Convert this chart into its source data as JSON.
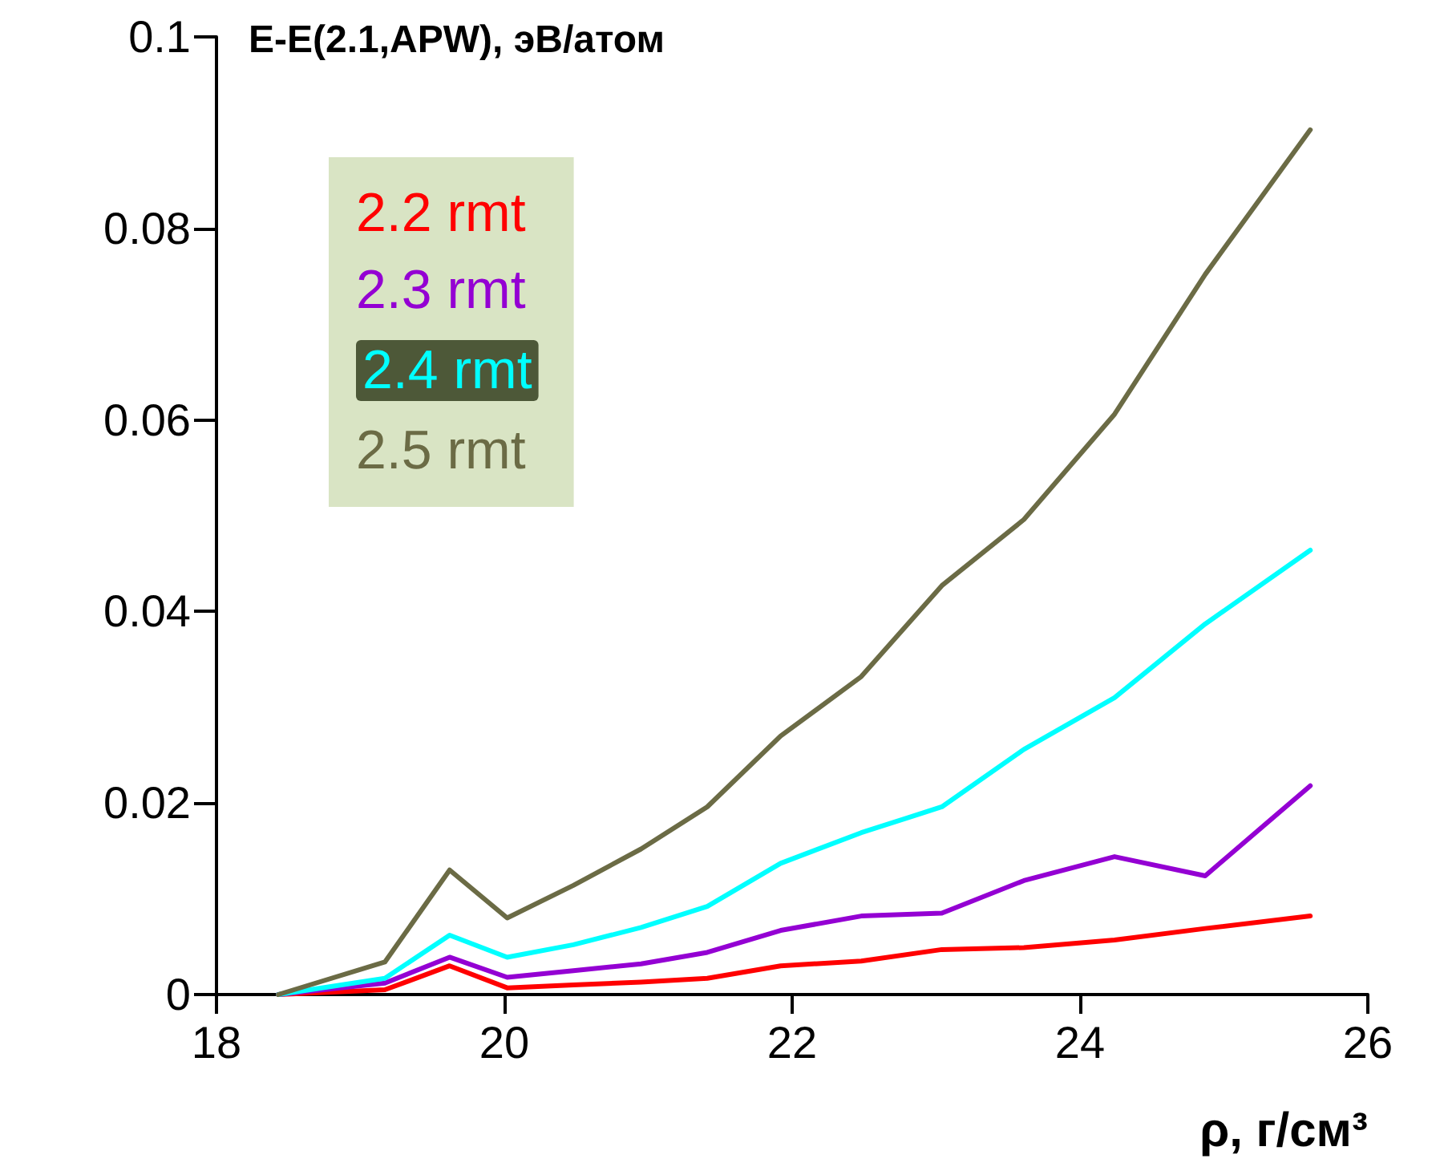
{
  "chart_data": {
    "type": "line",
    "ylabel": "E-E(2.1,APW), эВ/атом",
    "xlabel": "ρ, г/см³",
    "x": [
      18.43,
      19.17,
      19.62,
      20.02,
      20.48,
      20.95,
      21.41,
      21.92,
      22.48,
      23.04,
      23.61,
      24.24,
      24.87,
      25.6
    ],
    "series": [
      {
        "name": "2.2 rmt",
        "color": "#ff0000",
        "values": [
          0,
          0.0005,
          0.003,
          0.0007,
          0.001,
          0.0013,
          0.0017,
          0.003,
          0.0035,
          0.0047,
          0.0049,
          0.0057,
          0.0069,
          0.0082
        ]
      },
      {
        "name": "2.3 rmt",
        "color": "#9400d3",
        "values": [
          0,
          0.0012,
          0.0039,
          0.0018,
          0.0025,
          0.0032,
          0.0044,
          0.0067,
          0.0082,
          0.0085,
          0.0119,
          0.0144,
          0.0124,
          0.0218
        ]
      },
      {
        "name": "2.4 rmt",
        "color": "#00ffff",
        "values": [
          0,
          0.0017,
          0.0062,
          0.0039,
          0.0052,
          0.007,
          0.0092,
          0.0137,
          0.0169,
          0.0196,
          0.0256,
          0.031,
          0.0387,
          0.0464
        ]
      },
      {
        "name": "2.5 rmt",
        "color": "#6b6b45",
        "values": [
          0,
          0.0034,
          0.013,
          0.008,
          0.0114,
          0.0152,
          0.0196,
          0.027,
          0.0332,
          0.0427,
          0.0496,
          0.0606,
          0.0752,
          0.0903
        ]
      }
    ],
    "xlim": [
      18,
      26
    ],
    "xticks": [
      18,
      20,
      22,
      24,
      26
    ],
    "ylim": [
      0,
      0.1
    ],
    "yticks": [
      0,
      0.02,
      0.04,
      0.06,
      0.08,
      0.1
    ],
    "grid": false,
    "legend": "top left",
    "marker": "none",
    "line_style": "solid"
  }
}
